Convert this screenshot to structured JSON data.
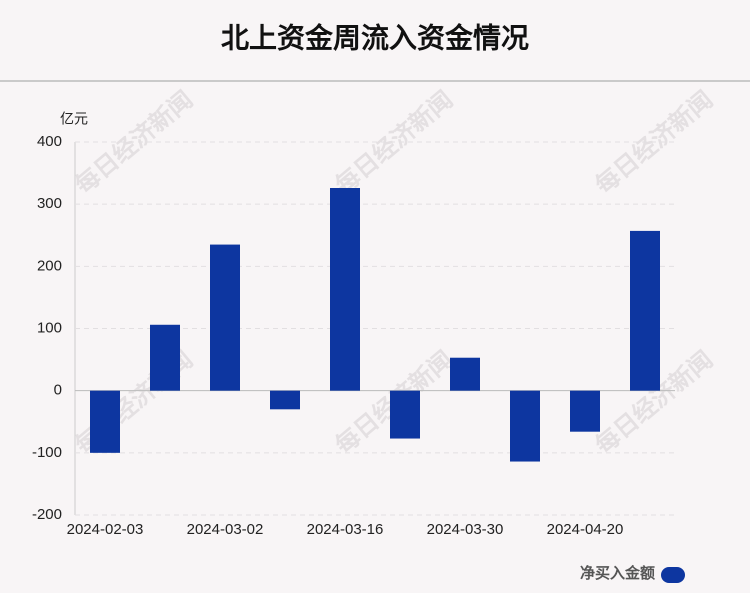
{
  "chart_data": {
    "type": "bar",
    "title": "北上资金周流入资金情况",
    "y_unit": "亿元",
    "categories": [
      "2024-02-03",
      null,
      "2024-03-02",
      null,
      "2024-03-16",
      null,
      "2024-03-30",
      null,
      "2024-04-20",
      null
    ],
    "series": [
      {
        "name": "净买入金额",
        "color": "#0d36a0",
        "values": [
          -100,
          106,
          235,
          -30,
          326,
          -77,
          53,
          -114,
          -66,
          257
        ]
      }
    ],
    "ylim": [
      -200,
      400
    ],
    "yticks": [
      -200,
      -100,
      0,
      100,
      200,
      300,
      400
    ],
    "grid": true,
    "legend": "bottom-right",
    "watermark": "每日经济新闻"
  }
}
